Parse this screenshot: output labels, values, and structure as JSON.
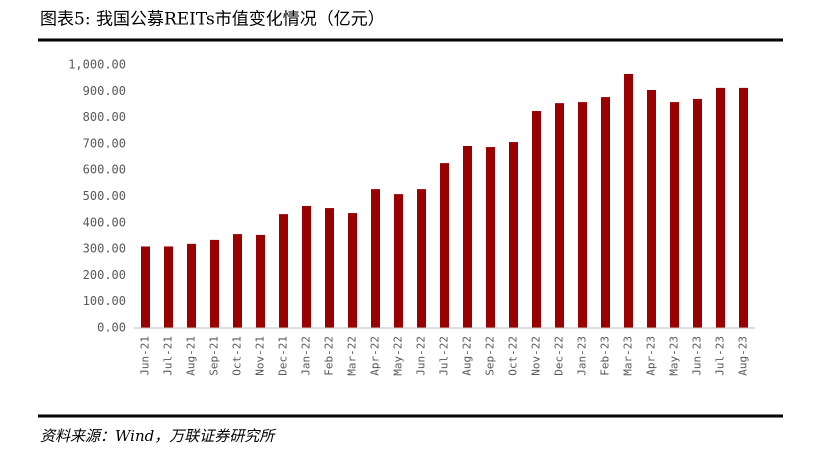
{
  "chart_data": {
    "type": "bar",
    "title": "图表5:  我国公募REITs市值变化情况（亿元）",
    "source": "资料来源：Wind，万联证券研究所",
    "color": "#990000",
    "categories": [
      "Jun-21",
      "Jul-21",
      "Aug-21",
      "Sep-21",
      "Oct-21",
      "Nov-21",
      "Dec-21",
      "Jan-22",
      "Feb-22",
      "Mar-22",
      "Apr-22",
      "May-22",
      "Jun-22",
      "Jul-22",
      "Aug-22",
      "Sep-22",
      "Oct-22",
      "Nov-22",
      "Dec-22",
      "Jan-23",
      "Feb-23",
      "Mar-23",
      "Apr-23",
      "May-23",
      "Jun-23",
      "Jul-23",
      "Aug-23"
    ],
    "values": [
      310,
      310,
      320,
      335,
      357,
      354,
      433,
      464,
      456,
      437,
      528,
      509,
      528,
      627,
      692,
      688,
      707,
      825,
      855,
      859,
      878,
      966,
      905,
      859,
      871,
      913,
      913
    ],
    "ylim": [
      0,
      1000
    ],
    "yticks": [
      {
        "value": 0,
        "label": "0.00"
      },
      {
        "value": 100,
        "label": "100.00"
      },
      {
        "value": 200,
        "label": "200.00"
      },
      {
        "value": 300,
        "label": "300.00"
      },
      {
        "value": 400,
        "label": "400.00"
      },
      {
        "value": 500,
        "label": "500.00"
      },
      {
        "value": 600,
        "label": "600.00"
      },
      {
        "value": 700,
        "label": "700.00"
      },
      {
        "value": 800,
        "label": "800.00"
      },
      {
        "value": 900,
        "label": "900.00"
      },
      {
        "value": 1000,
        "label": "1,000.00"
      }
    ],
    "grid": false
  }
}
